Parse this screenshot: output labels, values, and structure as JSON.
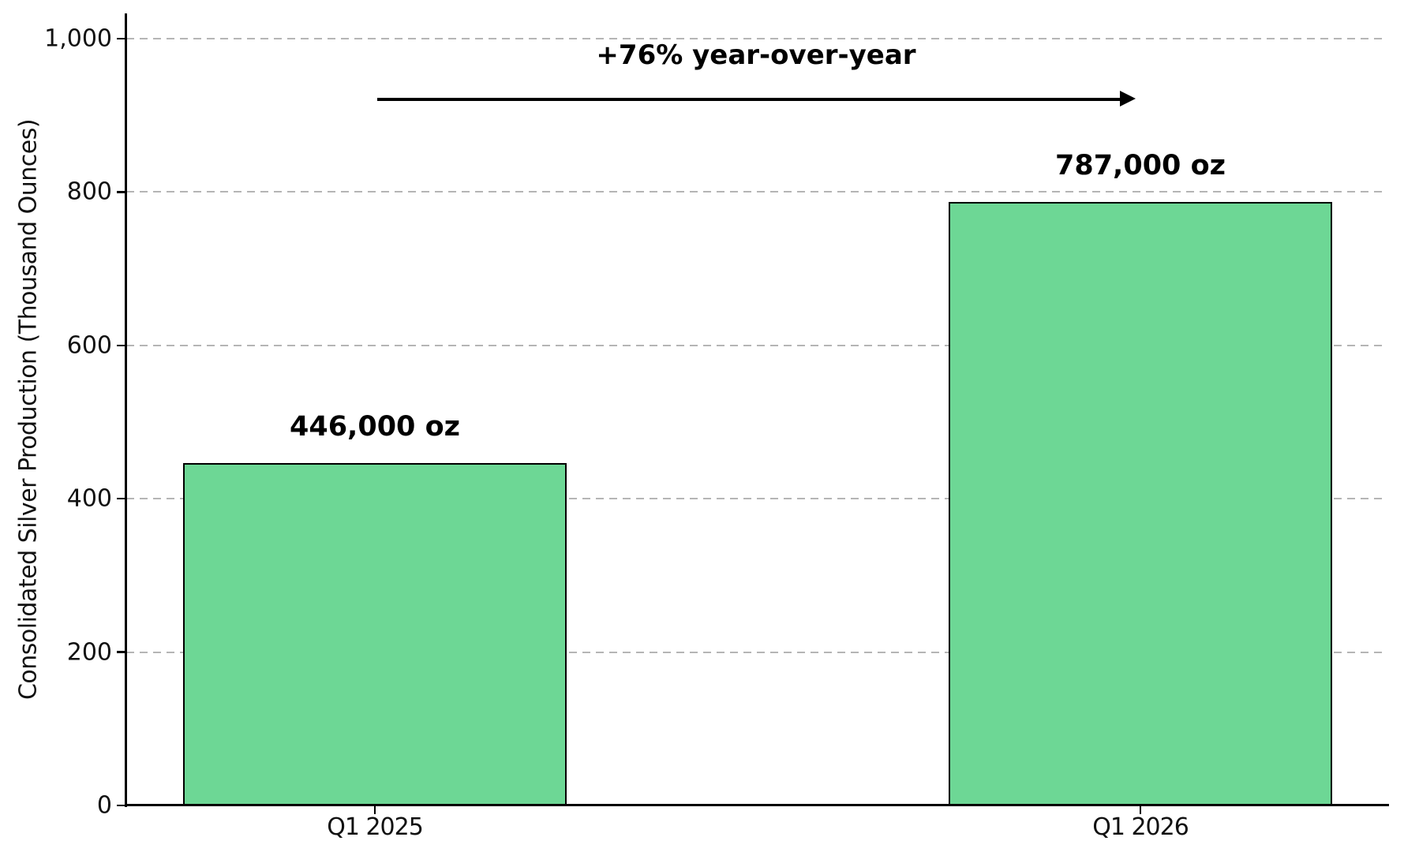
{
  "chart_data": {
    "type": "bar",
    "title": "",
    "xlabel": "",
    "ylabel": "Consolidated Silver Production (Thousand Ounces)",
    "categories": [
      "Q1 2025",
      "Q1 2026"
    ],
    "values": [
      446,
      787
    ],
    "bar_value_labels": [
      "446,000 oz",
      "787,000 oz"
    ],
    "yticks": [
      0,
      200,
      400,
      600,
      800,
      1000
    ],
    "ytick_labels": [
      "0",
      "200",
      "400",
      "600",
      "800",
      "1,000"
    ],
    "ylim": [
      0,
      1032
    ],
    "grid": "horizontal dashed",
    "legend_position": "none",
    "annotation": {
      "text": "+76% year-over-year",
      "arrow_direction": "left-to-right horizontal",
      "arrow_y_value": 922
    },
    "colors": {
      "bar_fill": "#6dd795",
      "bar_edge": "#000000",
      "grid": "#b5b5b5",
      "axis": "#000000",
      "text": "#000000",
      "background": "#ffffff"
    }
  }
}
